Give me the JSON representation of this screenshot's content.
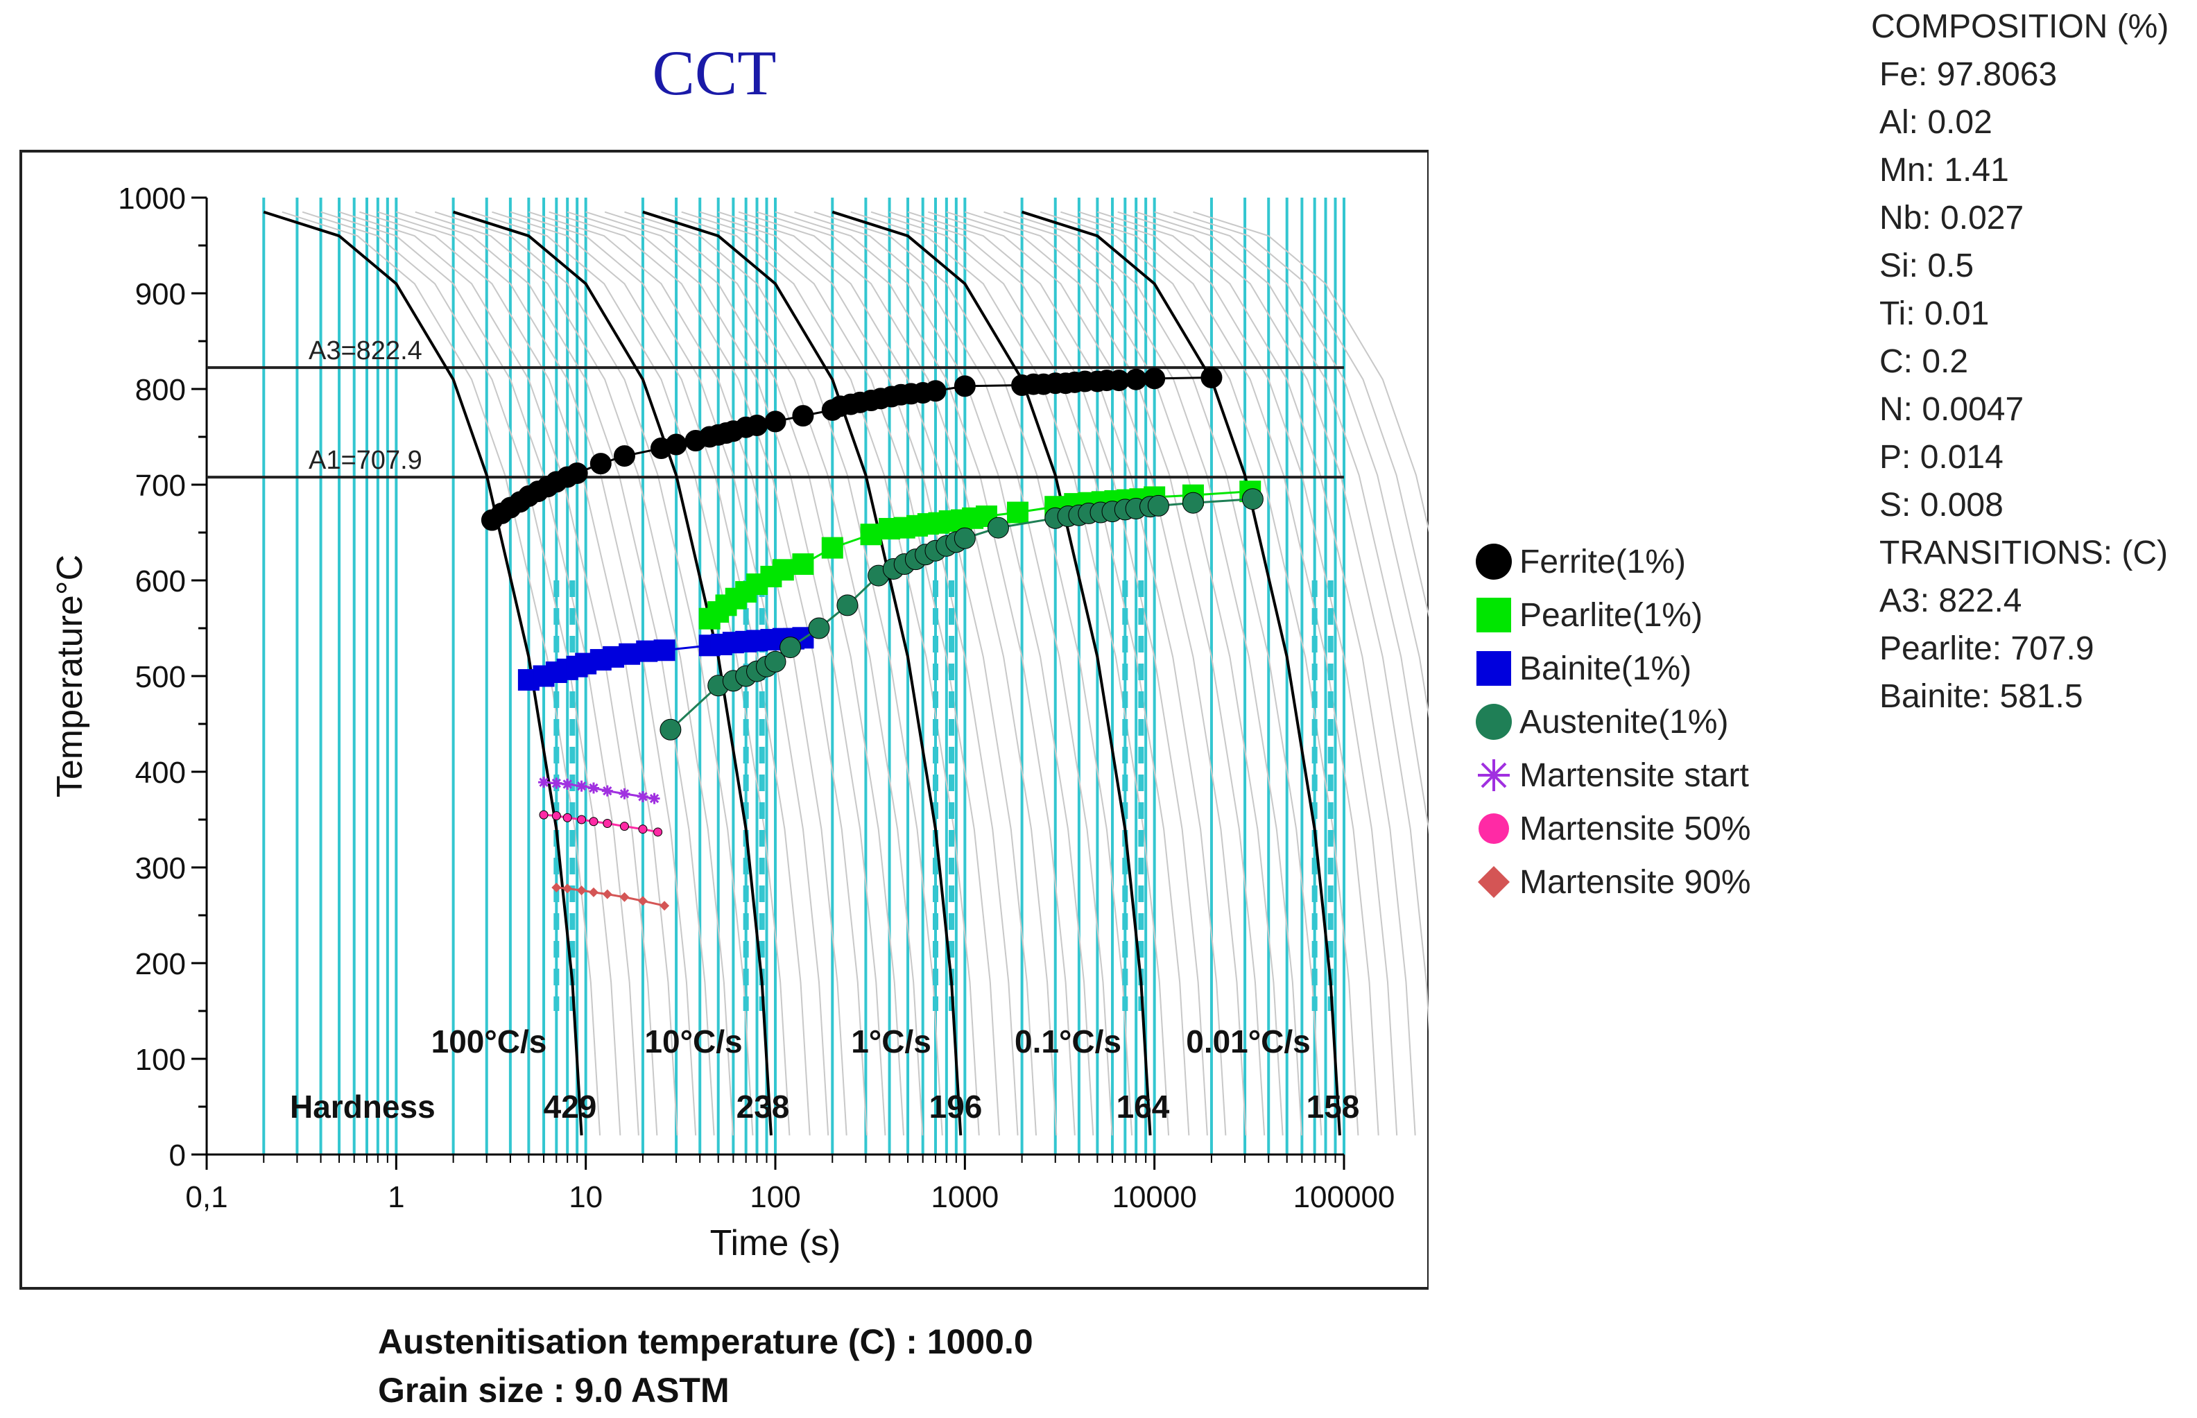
{
  "chart_data": {
    "type": "line",
    "title": "CCT",
    "xlabel": "Time (s)",
    "ylabel": "Temperature°C",
    "xscale": "log",
    "xlim": [
      0.1,
      100000
    ],
    "ylim": [
      0,
      1000
    ],
    "x_ticks": [
      0.1,
      1,
      10,
      100,
      1000,
      10000,
      100000
    ],
    "x_tick_labels": [
      "0,1",
      "1",
      "10",
      "100",
      "1000",
      "10000",
      "100000"
    ],
    "y_ticks": [
      0,
      100,
      200,
      300,
      400,
      500,
      600,
      700,
      800,
      900,
      1000
    ],
    "y_tick_labels": [
      "0",
      "100",
      "200",
      "300",
      "400",
      "500",
      "600",
      "700",
      "800",
      "900",
      "1000"
    ],
    "reference_lines": [
      {
        "label": "A3=822.4",
        "value": 822.4
      },
      {
        "label": "A1=707.9",
        "value": 707.9
      }
    ],
    "cooling_curves": [
      {
        "rate_label": "100°C/s",
        "hardness": "429",
        "x": [
          0.2,
          0.5,
          1,
          2,
          3,
          5,
          7,
          8.5,
          9.5
        ],
        "y": [
          985,
          960,
          910,
          810,
          710,
          520,
          340,
          180,
          20
        ]
      },
      {
        "rate_label": "10°C/s",
        "hardness": "238",
        "x": [
          2,
          5,
          10,
          20,
          30,
          50,
          70,
          85,
          95
        ],
        "y": [
          985,
          960,
          910,
          810,
          710,
          520,
          340,
          180,
          20
        ]
      },
      {
        "rate_label": "1°C/s",
        "hardness": "196",
        "x": [
          20,
          50,
          100,
          200,
          300,
          500,
          700,
          850,
          950
        ],
        "y": [
          985,
          960,
          910,
          810,
          710,
          520,
          340,
          180,
          20
        ]
      },
      {
        "rate_label": "0.1°C/s",
        "hardness": "164",
        "x": [
          200,
          500,
          1000,
          2000,
          3000,
          5000,
          7000,
          8500,
          9500
        ],
        "y": [
          985,
          960,
          910,
          810,
          710,
          520,
          340,
          180,
          20
        ]
      },
      {
        "rate_label": "0.01°C/s",
        "hardness": "158",
        "x": [
          2000,
          5000,
          10000,
          20000,
          30000,
          50000,
          70000,
          85000,
          95000
        ],
        "y": [
          985,
          960,
          910,
          810,
          710,
          520,
          340,
          180,
          20
        ]
      }
    ],
    "hardness_label": "Hardness",
    "series": [
      {
        "name": "Ferrite(1%)",
        "color": "#000000",
        "marker": "circle",
        "x": [
          3.2,
          3.6,
          4.0,
          4.5,
          5.0,
          5.6,
          6.3,
          7.0,
          8.0,
          9.0,
          12,
          16,
          25,
          30,
          38,
          45,
          50,
          55,
          60,
          70,
          80,
          100,
          140,
          200,
          220,
          250,
          280,
          320,
          360,
          410,
          460,
          520,
          600,
          700,
          1000,
          2000,
          2300,
          2600,
          3000,
          3400,
          3800,
          4300,
          5000,
          5600,
          6500,
          8000,
          10000,
          20000
        ],
        "y": [
          663,
          670,
          676,
          682,
          688,
          693,
          698,
          703,
          708,
          712,
          722,
          730,
          738,
          742,
          746,
          750,
          752,
          754,
          756,
          760,
          762,
          766,
          772,
          778,
          782,
          784,
          786,
          788,
          790,
          792,
          794,
          795,
          796,
          798,
          803,
          804,
          805,
          805,
          806,
          806,
          807,
          808,
          808,
          809,
          809,
          810,
          811,
          812
        ]
      },
      {
        "name": "Pearlite(1%)",
        "color": "#00e600",
        "marker": "square",
        "x": [
          45,
          50,
          55,
          62,
          70,
          80,
          95,
          110,
          140,
          200,
          320,
          400,
          480,
          560,
          640,
          730,
          830,
          960,
          1100,
          1300,
          1900,
          3000,
          3800,
          4500,
          5300,
          6200,
          7200,
          8400,
          10000,
          16000,
          32000
        ],
        "y": [
          560,
          567,
          574,
          581,
          588,
          596,
          604,
          611,
          617,
          634,
          648,
          654,
          655,
          657,
          659,
          660,
          662,
          663,
          665,
          667,
          671,
          677,
          680,
          681,
          682,
          683,
          684,
          685,
          687,
          689,
          693
        ]
      },
      {
        "name": "Bainite(1%)",
        "color": "#0000dd",
        "marker": "square",
        "x": [
          5,
          6,
          7,
          8,
          9,
          10,
          12,
          14,
          17,
          21,
          26,
          45,
          52,
          60,
          70,
          80,
          95,
          110,
          125,
          140
        ],
        "y": [
          496,
          500,
          504,
          507,
          510,
          513,
          517,
          520,
          523,
          526,
          527,
          532,
          533,
          535,
          536,
          537,
          538,
          539,
          539,
          540
        ]
      },
      {
        "name": "Austenite(1%)",
        "color": "#1f7f56",
        "marker": "circle",
        "x": [
          28,
          50,
          60,
          70,
          80,
          90,
          100,
          120,
          170,
          240,
          350,
          420,
          480,
          550,
          620,
          700,
          800,
          900,
          1000,
          1500,
          3000,
          3500,
          4000,
          4500,
          5200,
          6000,
          7000,
          8000,
          9500,
          10500,
          16000,
          33000
        ],
        "y": [
          444,
          490,
          495,
          500,
          505,
          510,
          515,
          530,
          550,
          574,
          605,
          612,
          617,
          622,
          627,
          631,
          636,
          640,
          644,
          655,
          665,
          667,
          668,
          670,
          671,
          672,
          674,
          675,
          677,
          678,
          681,
          685
        ]
      },
      {
        "name": "Martensite start",
        "color": "#a030e0",
        "marker": "star",
        "x": [
          6,
          7,
          8,
          9.5,
          11,
          13,
          16,
          20,
          23
        ],
        "y": [
          389,
          388,
          387,
          385,
          383,
          380,
          377,
          374,
          372
        ]
      },
      {
        "name": "Martensite 50%",
        "color": "#ff2aa5",
        "marker": "circle",
        "x": [
          6,
          7,
          8,
          9.5,
          11,
          13,
          16,
          20,
          24
        ],
        "y": [
          355,
          354,
          352,
          350,
          348,
          346,
          343,
          340,
          337
        ]
      },
      {
        "name": "Martensite 90%",
        "color": "#d45555",
        "marker": "diamond",
        "x": [
          7,
          8,
          9.5,
          11,
          13,
          16,
          20,
          26
        ],
        "y": [
          279,
          278,
          276,
          274,
          272,
          269,
          265,
          260
        ]
      }
    ],
    "legend": [
      {
        "label": "Ferrite(1%)",
        "color": "#000000",
        "marker": "circle"
      },
      {
        "label": "Pearlite(1%)",
        "color": "#00e600",
        "marker": "square"
      },
      {
        "label": "Bainite(1%)",
        "color": "#0000dd",
        "marker": "square"
      },
      {
        "label": "Austenite(1%)",
        "color": "#1f7f56",
        "marker": "circle"
      },
      {
        "label": "Martensite start",
        "color": "#a030e0",
        "marker": "star"
      },
      {
        "label": "Martensite 50%",
        "color": "#ff2aa5",
        "marker": "circle"
      },
      {
        "label": "Martensite 90%",
        "color": "#d45555",
        "marker": "diamond"
      }
    ]
  },
  "composition": {
    "header": "COMPOSITION (%)",
    "items": [
      "Fe: 97.8063",
      "Al: 0.02",
      "Mn: 1.41",
      "Nb: 0.027",
      "Si: 0.5",
      "Ti: 0.01",
      "C: 0.2",
      "N: 0.0047",
      "P: 0.014",
      "S: 0.008"
    ]
  },
  "transitions": {
    "header": "TRANSITIONS: (C)",
    "items": [
      "A3: 822.4",
      "Pearlite: 707.9",
      "Bainite: 581.5"
    ]
  },
  "footer": {
    "austenitisation": "Austenitisation temperature (C) : 1000.0",
    "grain_size": "Grain size : 9.0 ASTM"
  },
  "colors": {
    "grid_cyan": "#33c6d0",
    "title_blue": "#1a1aa8"
  }
}
